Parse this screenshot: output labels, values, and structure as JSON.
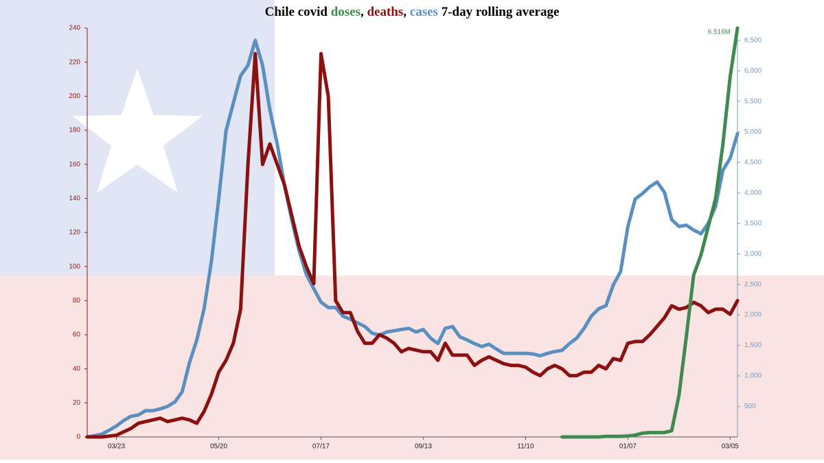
{
  "chart_data": {
    "type": "line",
    "title_parts": [
      {
        "text": "Chile covid "
      },
      {
        "text": "doses",
        "color": "#3e8a50"
      },
      {
        "text": ", "
      },
      {
        "text": "deaths",
        "color": "#8b1010"
      },
      {
        "text": ", "
      },
      {
        "text": "cases",
        "color": "#5b8fc0"
      },
      {
        "text": " 7-day rolling average"
      }
    ],
    "categories": [
      null,
      null,
      null,
      null,
      "03/23",
      null,
      null,
      null,
      null,
      null,
      null,
      null,
      null,
      null,
      null,
      null,
      null,
      null,
      "05/20",
      null,
      null,
      null,
      null,
      null,
      null,
      null,
      null,
      null,
      null,
      null,
      null,
      null,
      "07/17",
      null,
      null,
      null,
      null,
      null,
      null,
      null,
      null,
      null,
      null,
      null,
      null,
      null,
      "09/13",
      null,
      null,
      null,
      null,
      null,
      null,
      null,
      null,
      null,
      null,
      null,
      null,
      null,
      "11/10",
      null,
      null,
      null,
      null,
      null,
      null,
      null,
      null,
      null,
      null,
      null,
      null,
      null,
      "01/07",
      null,
      null,
      null,
      null,
      null,
      null,
      null,
      null,
      null,
      null,
      null,
      null,
      null,
      "03/05",
      null
    ],
    "ylim": [
      0,
      240
    ],
    "yticks": [
      0,
      20,
      40,
      60,
      80,
      100,
      120,
      140,
      160,
      180,
      200,
      220,
      240
    ],
    "y2lim": [
      0,
      6700
    ],
    "y2ticks": [
      500,
      {
        "value": 1000,
        "label": "1,000"
      },
      {
        "value": 1500,
        "label": "1,500"
      },
      {
        "value": 2000,
        "label": "2,000"
      },
      {
        "value": 2500,
        "label": "2,500"
      },
      {
        "value": 3000,
        "label": "3,000"
      },
      {
        "value": 3500,
        "label": "3,500"
      },
      {
        "value": 4000,
        "label": "4,000"
      },
      {
        "value": 4500,
        "label": "4,500"
      },
      {
        "value": 5000,
        "label": "5,000"
      },
      {
        "value": 5500,
        "label": "5,500"
      },
      {
        "value": 6000,
        "label": "6,000"
      },
      {
        "value": 6500,
        "label": "6,500"
      }
    ],
    "y3lim": [
      0,
      6516000
    ],
    "series": [
      {
        "name": "cases",
        "color": "#5b8fc0",
        "axis": "y2",
        "values": [
          0,
          20,
          45,
          110,
          180,
          270,
          340,
          360,
          430,
          430,
          460,
          500,
          575,
          740,
          1220,
          1590,
          2100,
          2880,
          3900,
          5020,
          5470,
          5920,
          6090,
          6500,
          6090,
          5360,
          4800,
          4120,
          3560,
          3050,
          2660,
          2430,
          2210,
          2120,
          2120,
          1980,
          1930,
          1870,
          1810,
          1700,
          1670,
          1720,
          1740,
          1760,
          1780,
          1720,
          1760,
          1620,
          1530,
          1780,
          1810,
          1640,
          1590,
          1530,
          1480,
          1520,
          1440,
          1370,
          1370,
          1370,
          1370,
          1360,
          1330,
          1370,
          1400,
          1420,
          1530,
          1620,
          1780,
          1980,
          2100,
          2150,
          2490,
          2710,
          3450,
          3900,
          3990,
          4100,
          4180,
          4010,
          3560,
          3450,
          3470,
          3390,
          3330,
          3500,
          3780,
          4370,
          4570,
          4970
        ]
      },
      {
        "name": "deaths",
        "color": "#8b1010",
        "values": [
          0,
          0,
          0,
          0.5,
          1,
          3,
          5,
          8,
          9,
          10,
          11,
          9,
          10,
          11,
          10,
          8,
          15,
          25,
          38,
          45,
          55,
          75,
          160,
          225,
          160,
          172,
          160,
          148,
          130,
          112,
          100,
          90,
          225,
          200,
          80,
          73,
          73,
          62,
          55,
          55,
          60,
          58,
          55,
          50,
          52,
          51,
          50,
          50,
          45,
          55,
          48,
          48,
          48,
          42,
          45,
          47,
          45,
          43,
          42,
          42,
          41,
          38,
          36,
          40,
          42,
          40,
          36,
          36,
          38,
          38,
          42,
          40,
          46,
          45,
          55,
          56,
          56,
          60,
          65,
          70,
          77,
          75,
          76,
          79,
          77,
          73,
          75,
          75,
          72,
          80
        ]
      },
      {
        "name": "doses",
        "color": "#3e8a50",
        "axis": "y3",
        "values": [
          null,
          null,
          null,
          null,
          null,
          null,
          null,
          null,
          null,
          null,
          null,
          null,
          null,
          null,
          null,
          null,
          null,
          null,
          null,
          null,
          null,
          null,
          null,
          null,
          null,
          null,
          null,
          null,
          null,
          null,
          null,
          null,
          null,
          null,
          null,
          null,
          null,
          null,
          null,
          null,
          null,
          null,
          null,
          null,
          null,
          null,
          null,
          null,
          null,
          null,
          null,
          null,
          null,
          null,
          null,
          null,
          null,
          null,
          null,
          null,
          null,
          null,
          null,
          null,
          null,
          0,
          0,
          0,
          0,
          0,
          0,
          10000,
          10000,
          10000,
          15000,
          30000,
          60000,
          70000,
          70000,
          70000,
          100000,
          670000,
          1600000,
          2580000,
          2900000,
          3350000,
          3800000,
          4660000,
          5750000,
          6516000
        ],
        "value_labels": [
          null,
          null,
          null,
          null,
          null,
          null,
          null,
          null,
          null,
          null,
          null,
          null,
          null,
          null,
          null,
          null,
          null,
          null,
          null,
          null,
          null,
          null,
          null,
          null,
          null,
          null,
          null,
          null,
          null,
          null,
          null,
          null,
          null,
          null,
          null,
          null,
          null,
          null,
          null,
          null,
          null,
          null,
          null,
          null,
          null,
          null,
          null,
          null,
          null,
          null,
          null,
          null,
          null,
          null,
          null,
          null,
          null,
          null,
          null,
          null,
          null,
          null,
          null,
          null,
          null,
          null,
          null,
          null,
          null,
          null,
          null,
          null,
          null,
          null,
          null,
          null,
          null,
          null,
          null,
          null,
          null,
          null,
          null,
          null,
          null,
          null,
          null,
          null,
          null,
          "6.516M"
        ]
      }
    ]
  }
}
